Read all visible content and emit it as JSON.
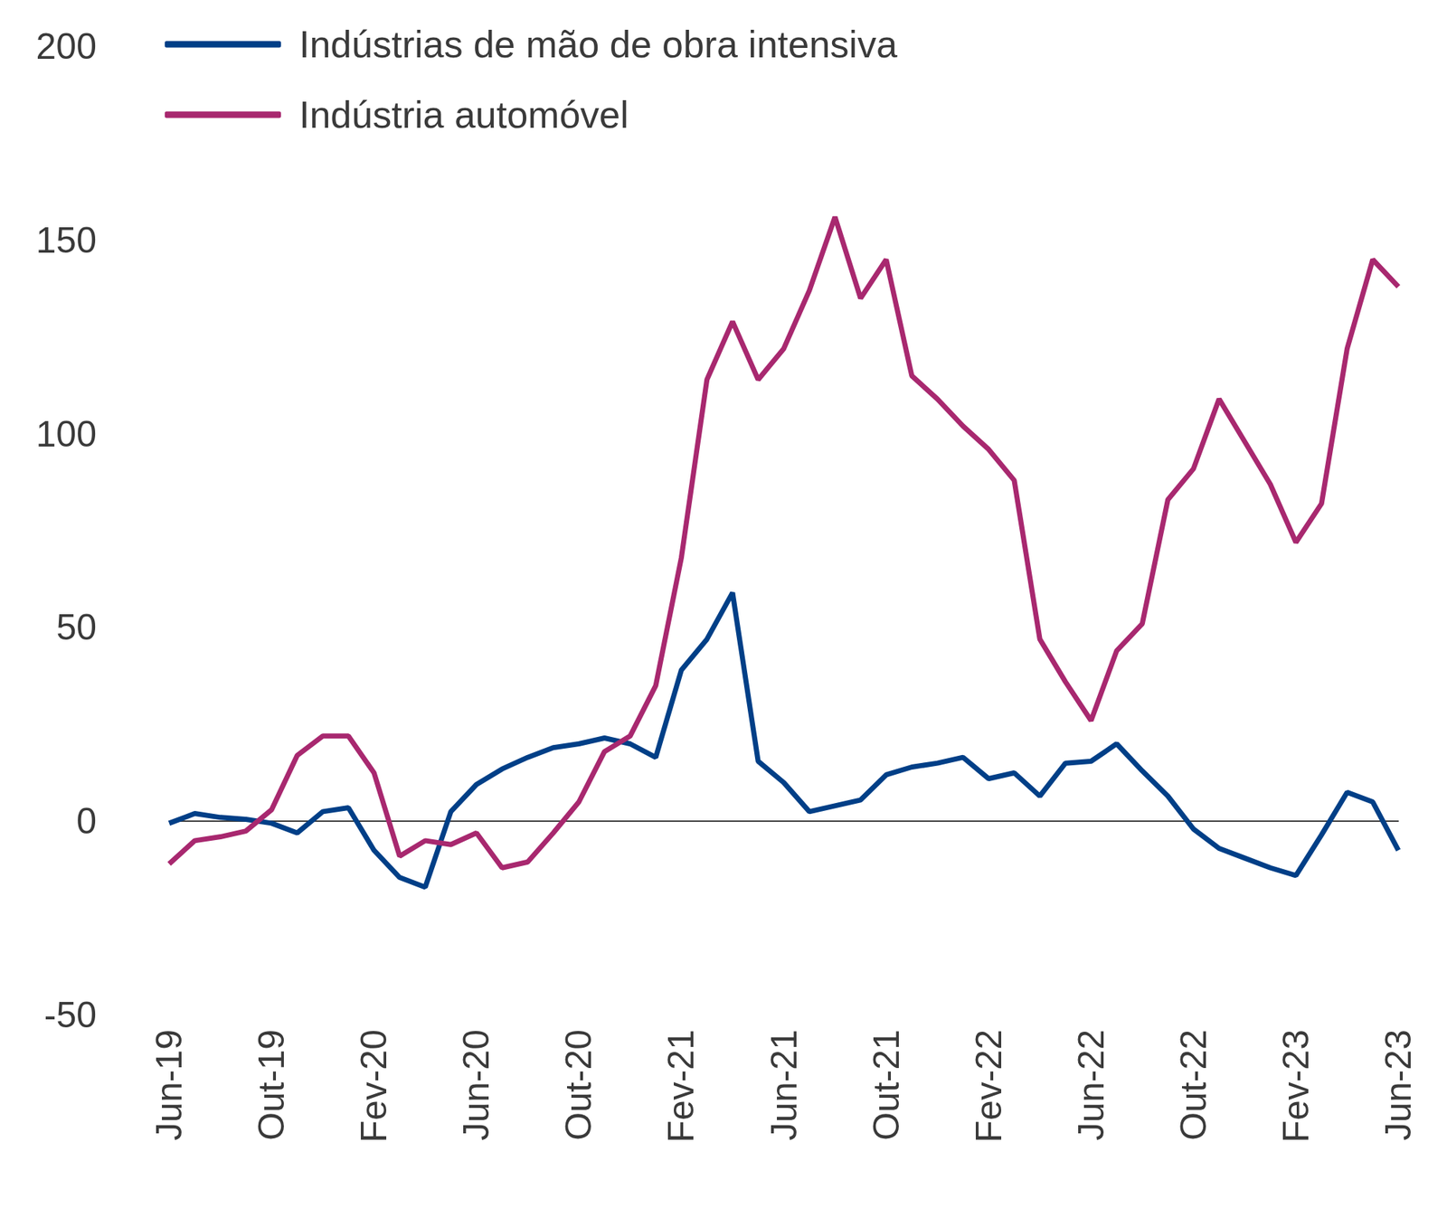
{
  "chart_data": {
    "type": "line",
    "categories": [
      "Jun-19",
      null,
      null,
      null,
      "Out-19",
      null,
      null,
      null,
      "Fev-20",
      null,
      null,
      null,
      "Jun-20",
      null,
      null,
      null,
      "Out-20",
      null,
      null,
      null,
      "Fev-21",
      null,
      null,
      null,
      "Jun-21",
      null,
      null,
      null,
      "Out-21",
      null,
      null,
      null,
      "Fev-22",
      null,
      null,
      null,
      "Jun-22",
      null,
      null,
      null,
      "Out-22",
      null,
      null,
      null,
      "Fev-23",
      null,
      null,
      null,
      "Jun-23"
    ],
    "series": [
      {
        "name": "Indústrias de mão de obra intensiva",
        "color": "#003f87",
        "values": [
          -0.5,
          2,
          1,
          0.5,
          -0.5,
          -3,
          2.5,
          3.5,
          -7.5,
          -14.5,
          -17,
          2.5,
          9.5,
          13.5,
          16.5,
          19,
          20,
          21.5,
          20,
          16.5,
          39,
          47,
          59,
          15.5,
          10,
          2.5,
          4,
          5.5,
          12,
          14,
          15,
          16.5,
          11,
          12.5,
          6.5,
          15,
          15.5,
          20,
          13,
          6.5,
          -2,
          -7,
          -9.5,
          -12,
          -14,
          -3.5,
          7.5,
          5,
          -7.5
        ]
      },
      {
        "name": "Indústria automóvel",
        "color": "#a8286f",
        "values": [
          -11,
          -5,
          -4,
          -2.5,
          3,
          17,
          22,
          22,
          12.5,
          -9,
          -5,
          -6,
          -3,
          -12,
          -10.5,
          -3,
          5,
          18,
          22,
          35,
          68,
          114,
          129,
          114,
          122,
          137,
          156,
          135,
          145,
          115,
          109,
          102,
          96,
          88,
          47,
          36,
          26,
          44,
          51,
          83,
          91,
          109,
          98,
          87,
          72,
          82,
          122,
          145,
          138
        ]
      }
    ],
    "ylim": [
      -50,
      200
    ],
    "yticks": [
      -50,
      0,
      50,
      100,
      150,
      200
    ],
    "grid": false,
    "legend": "top-left"
  }
}
